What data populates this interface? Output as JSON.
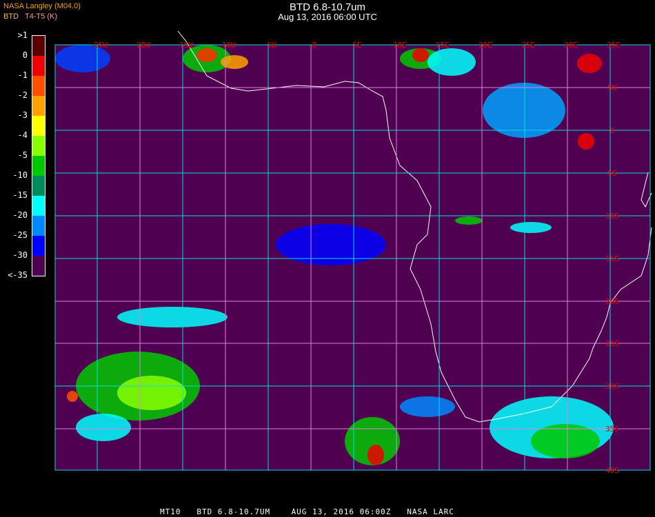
{
  "header": {
    "title": "BTD 6.8-10.7um",
    "subtitle": "Aug 13, 2016 06:00 UTC"
  },
  "legend": {
    "product": "BTD",
    "source": "NASA Langley (M04.0)",
    "units": "T4-T5 (K)",
    "items": [
      {
        "label": ">1",
        "color": "#5a0000"
      },
      {
        "label": "0",
        "color": "#f00000"
      },
      {
        "label": "-1",
        "color": "#ff5000"
      },
      {
        "label": "-2",
        "color": "#ffa000"
      },
      {
        "label": "-3",
        "color": "#ffff00"
      },
      {
        "label": "-4",
        "color": "#88ff00"
      },
      {
        "label": "-5",
        "color": "#00c800"
      },
      {
        "label": "-10",
        "color": "#008c5a"
      },
      {
        "label": "-15",
        "color": "#00ffff"
      },
      {
        "label": "-20",
        "color": "#0088ff"
      },
      {
        "label": "-25",
        "color": "#0000ff"
      },
      {
        "label": "-30",
        "color": "#500050"
      },
      {
        "label": "<-35",
        "color": ""
      }
    ]
  },
  "map": {
    "background": "#500050",
    "grid_colors": [
      "#00e0e0",
      "#e080e0"
    ],
    "coast_color": "#ffffff",
    "label_color": "#e00000",
    "lon_labels": [
      "25W",
      "20W",
      "15W",
      "10W",
      "5W",
      "0",
      "5E",
      "10E",
      "15E",
      "20E",
      "25E",
      "30E",
      "35E"
    ],
    "lat_labels": [
      "5N",
      "0",
      "5S",
      "10S",
      "15S",
      "20S",
      "25S",
      "30S",
      "35S",
      "40S"
    ]
  },
  "footer": {
    "text": "MT10   BTD 6.8-10.7UM    AUG 13, 2016 06:00Z   NASA LARC"
  }
}
